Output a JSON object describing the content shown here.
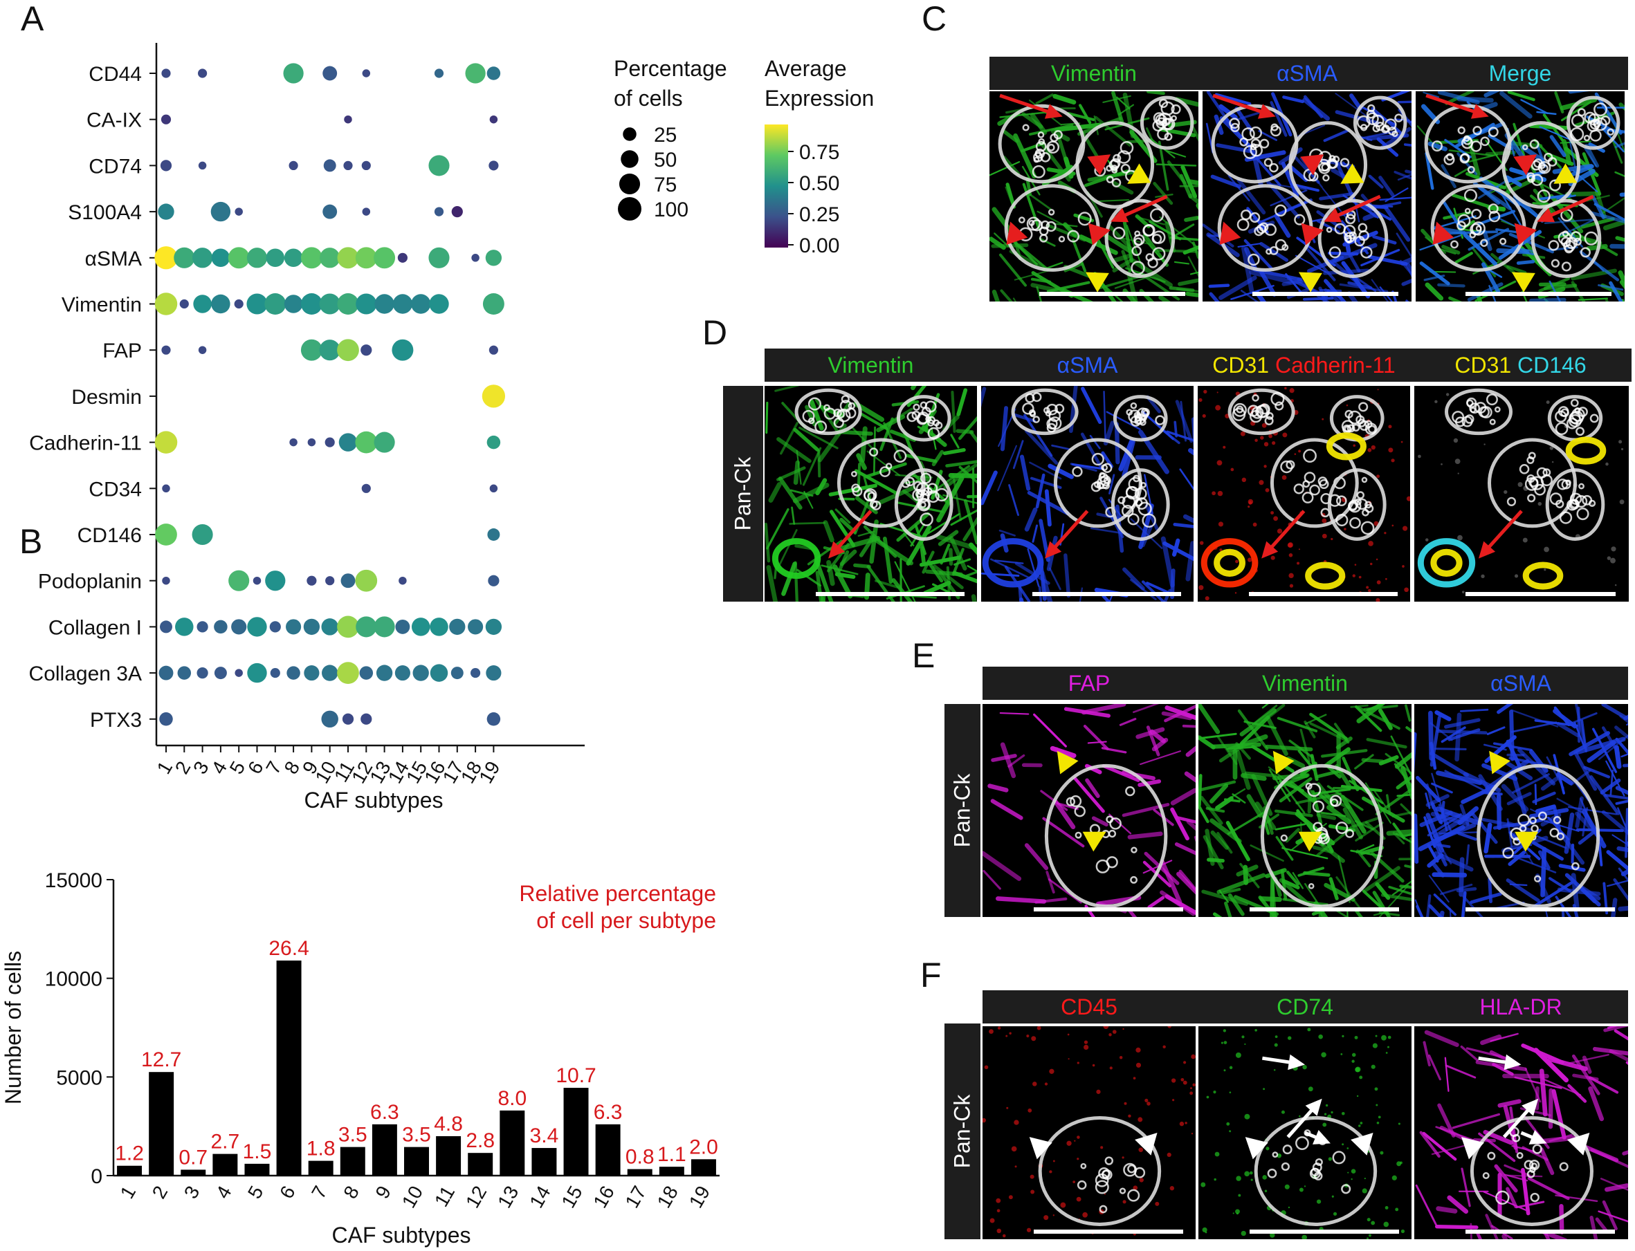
{
  "panel_letters": {
    "a": "A",
    "b": "B",
    "c": "C",
    "d": "D",
    "e": "E",
    "f": "F"
  },
  "chart_data": [
    {
      "type": "scatter",
      "panel": "A",
      "xlabel": "CAF subtypes",
      "x_categories": [
        "1",
        "2",
        "3",
        "4",
        "5",
        "6",
        "7",
        "8",
        "9",
        "10",
        "11",
        "12",
        "13",
        "14",
        "15",
        "16",
        "17",
        "18",
        "19"
      ],
      "y_categories": [
        "CD44",
        "CA-IX",
        "CD74",
        "S100A4",
        "αSMA",
        "Vimentin",
        "FAP",
        "Desmin",
        "Cadherin-11",
        "CD34",
        "CD146",
        "Podoplanin",
        "Collagen I",
        "Collagen 3A",
        "PTX3"
      ],
      "size_legend": {
        "title_line1": "Percentage",
        "title_line2": "of cells",
        "values": [
          25,
          50,
          75,
          100
        ],
        "labels": [
          "25",
          "50",
          "75",
          "100"
        ]
      },
      "color_legend": {
        "title_line1": "Average",
        "title_line2": "Expression",
        "ticks": [
          "0.75",
          "0.50",
          "0.25",
          "0.00"
        ],
        "colormap": "viridis",
        "range": [
          0,
          0.9
        ]
      },
      "points": [
        {
          "gene": "CD44",
          "x": 1,
          "pct": 8,
          "expr": 0.2
        },
        {
          "gene": "CD44",
          "x": 3,
          "pct": 8,
          "expr": 0.2
        },
        {
          "gene": "CD44",
          "x": 8,
          "pct": 70,
          "expr": 0.55
        },
        {
          "gene": "CD44",
          "x": 10,
          "pct": 30,
          "expr": 0.25
        },
        {
          "gene": "CD44",
          "x": 12,
          "pct": 5,
          "expr": 0.2
        },
        {
          "gene": "CD44",
          "x": 16,
          "pct": 8,
          "expr": 0.3
        },
        {
          "gene": "CD44",
          "x": 18,
          "pct": 70,
          "expr": 0.6
        },
        {
          "gene": "CD44",
          "x": 19,
          "pct": 25,
          "expr": 0.35
        },
        {
          "gene": "CA-IX",
          "x": 1,
          "pct": 10,
          "expr": 0.15
        },
        {
          "gene": "CA-IX",
          "x": 11,
          "pct": 5,
          "expr": 0.15
        },
        {
          "gene": "CA-IX",
          "x": 19,
          "pct": 5,
          "expr": 0.15
        },
        {
          "gene": "CD74",
          "x": 1,
          "pct": 15,
          "expr": 0.2
        },
        {
          "gene": "CD74",
          "x": 3,
          "pct": 5,
          "expr": 0.2
        },
        {
          "gene": "CD74",
          "x": 8,
          "pct": 8,
          "expr": 0.2
        },
        {
          "gene": "CD74",
          "x": 10,
          "pct": 20,
          "expr": 0.25
        },
        {
          "gene": "CD74",
          "x": 11,
          "pct": 8,
          "expr": 0.2
        },
        {
          "gene": "CD74",
          "x": 12,
          "pct": 8,
          "expr": 0.2
        },
        {
          "gene": "CD74",
          "x": 16,
          "pct": 75,
          "expr": 0.55
        },
        {
          "gene": "CD74",
          "x": 19,
          "pct": 10,
          "expr": 0.2
        },
        {
          "gene": "S100A4",
          "x": 1,
          "pct": 40,
          "expr": 0.4
        },
        {
          "gene": "S100A4",
          "x": 4,
          "pct": 65,
          "expr": 0.35
        },
        {
          "gene": "S100A4",
          "x": 5,
          "pct": 5,
          "expr": 0.2
        },
        {
          "gene": "S100A4",
          "x": 10,
          "pct": 30,
          "expr": 0.3
        },
        {
          "gene": "S100A4",
          "x": 12,
          "pct": 5,
          "expr": 0.2
        },
        {
          "gene": "S100A4",
          "x": 16,
          "pct": 8,
          "expr": 0.25
        },
        {
          "gene": "S100A4",
          "x": 17,
          "pct": 15,
          "expr": 0.1
        },
        {
          "gene": "αSMA",
          "x": 1,
          "pct": 95,
          "expr": 0.9
        },
        {
          "gene": "αSMA",
          "x": 2,
          "pct": 75,
          "expr": 0.55
        },
        {
          "gene": "αSMA",
          "x": 3,
          "pct": 70,
          "expr": 0.5
        },
        {
          "gene": "αSMA",
          "x": 4,
          "pct": 55,
          "expr": 0.45
        },
        {
          "gene": "αSMA",
          "x": 5,
          "pct": 80,
          "expr": 0.65
        },
        {
          "gene": "αSMA",
          "x": 6,
          "pct": 70,
          "expr": 0.55
        },
        {
          "gene": "αSMA",
          "x": 7,
          "pct": 55,
          "expr": 0.5
        },
        {
          "gene": "αSMA",
          "x": 8,
          "pct": 55,
          "expr": 0.5
        },
        {
          "gene": "αSMA",
          "x": 9,
          "pct": 80,
          "expr": 0.65
        },
        {
          "gene": "αSMA",
          "x": 10,
          "pct": 70,
          "expr": 0.6
        },
        {
          "gene": "αSMA",
          "x": 11,
          "pct": 80,
          "expr": 0.75
        },
        {
          "gene": "αSMA",
          "x": 12,
          "pct": 80,
          "expr": 0.7
        },
        {
          "gene": "αSMA",
          "x": 13,
          "pct": 80,
          "expr": 0.65
        },
        {
          "gene": "αSMA",
          "x": 14,
          "pct": 10,
          "expr": 0.15
        },
        {
          "gene": "αSMA",
          "x": 16,
          "pct": 75,
          "expr": 0.55
        },
        {
          "gene": "αSMA",
          "x": 18,
          "pct": 5,
          "expr": 0.2
        },
        {
          "gene": "αSMA",
          "x": 19,
          "pct": 40,
          "expr": 0.55
        },
        {
          "gene": "Vimentin",
          "x": 1,
          "pct": 90,
          "expr": 0.8
        },
        {
          "gene": "Vimentin",
          "x": 2,
          "pct": 8,
          "expr": 0.2
        },
        {
          "gene": "Vimentin",
          "x": 3,
          "pct": 55,
          "expr": 0.45
        },
        {
          "gene": "Vimentin",
          "x": 4,
          "pct": 60,
          "expr": 0.4
        },
        {
          "gene": "Vimentin",
          "x": 5,
          "pct": 8,
          "expr": 0.2
        },
        {
          "gene": "Vimentin",
          "x": 6,
          "pct": 75,
          "expr": 0.45
        },
        {
          "gene": "Vimentin",
          "x": 7,
          "pct": 80,
          "expr": 0.5
        },
        {
          "gene": "Vimentin",
          "x": 8,
          "pct": 55,
          "expr": 0.4
        },
        {
          "gene": "Vimentin",
          "x": 9,
          "pct": 80,
          "expr": 0.45
        },
        {
          "gene": "Vimentin",
          "x": 10,
          "pct": 75,
          "expr": 0.5
        },
        {
          "gene": "Vimentin",
          "x": 11,
          "pct": 80,
          "expr": 0.55
        },
        {
          "gene": "Vimentin",
          "x": 12,
          "pct": 75,
          "expr": 0.45
        },
        {
          "gene": "Vimentin",
          "x": 13,
          "pct": 65,
          "expr": 0.4
        },
        {
          "gene": "Vimentin",
          "x": 14,
          "pct": 65,
          "expr": 0.4
        },
        {
          "gene": "Vimentin",
          "x": 15,
          "pct": 65,
          "expr": 0.4
        },
        {
          "gene": "Vimentin",
          "x": 16,
          "pct": 65,
          "expr": 0.45
        },
        {
          "gene": "Vimentin",
          "x": 19,
          "pct": 80,
          "expr": 0.55
        },
        {
          "gene": "FAP",
          "x": 1,
          "pct": 8,
          "expr": 0.2
        },
        {
          "gene": "FAP",
          "x": 3,
          "pct": 5,
          "expr": 0.2
        },
        {
          "gene": "FAP",
          "x": 9,
          "pct": 80,
          "expr": 0.55
        },
        {
          "gene": "FAP",
          "x": 10,
          "pct": 75,
          "expr": 0.5
        },
        {
          "gene": "FAP",
          "x": 11,
          "pct": 85,
          "expr": 0.75
        },
        {
          "gene": "FAP",
          "x": 12,
          "pct": 15,
          "expr": 0.2
        },
        {
          "gene": "FAP",
          "x": 14,
          "pct": 80,
          "expr": 0.45
        },
        {
          "gene": "FAP",
          "x": 19,
          "pct": 8,
          "expr": 0.2
        },
        {
          "gene": "Desmin",
          "x": 19,
          "pct": 95,
          "expr": 0.88
        },
        {
          "gene": "Cadherin-11",
          "x": 1,
          "pct": 90,
          "expr": 0.82
        },
        {
          "gene": "Cadherin-11",
          "x": 8,
          "pct": 5,
          "expr": 0.2
        },
        {
          "gene": "Cadherin-11",
          "x": 9,
          "pct": 5,
          "expr": 0.2
        },
        {
          "gene": "Cadherin-11",
          "x": 10,
          "pct": 10,
          "expr": 0.2
        },
        {
          "gene": "Cadherin-11",
          "x": 11,
          "pct": 55,
          "expr": 0.4
        },
        {
          "gene": "Cadherin-11",
          "x": 12,
          "pct": 85,
          "expr": 0.65
        },
        {
          "gene": "Cadherin-11",
          "x": 13,
          "pct": 75,
          "expr": 0.55
        },
        {
          "gene": "Cadherin-11",
          "x": 19,
          "pct": 25,
          "expr": 0.5
        },
        {
          "gene": "CD34",
          "x": 1,
          "pct": 5,
          "expr": 0.2
        },
        {
          "gene": "CD34",
          "x": 12,
          "pct": 8,
          "expr": 0.2
        },
        {
          "gene": "CD34",
          "x": 19,
          "pct": 5,
          "expr": 0.2
        },
        {
          "gene": "CD146",
          "x": 1,
          "pct": 85,
          "expr": 0.68
        },
        {
          "gene": "CD146",
          "x": 3,
          "pct": 75,
          "expr": 0.5
        },
        {
          "gene": "CD146",
          "x": 19,
          "pct": 20,
          "expr": 0.35
        },
        {
          "gene": "Podoplanin",
          "x": 1,
          "pct": 5,
          "expr": 0.2
        },
        {
          "gene": "Podoplanin",
          "x": 5,
          "pct": 75,
          "expr": 0.6
        },
        {
          "gene": "Podoplanin",
          "x": 6,
          "pct": 5,
          "expr": 0.2
        },
        {
          "gene": "Podoplanin",
          "x": 7,
          "pct": 70,
          "expr": 0.45
        },
        {
          "gene": "Podoplanin",
          "x": 9,
          "pct": 10,
          "expr": 0.2
        },
        {
          "gene": "Podoplanin",
          "x": 10,
          "pct": 8,
          "expr": 0.2
        },
        {
          "gene": "Podoplanin",
          "x": 11,
          "pct": 30,
          "expr": 0.3
        },
        {
          "gene": "Podoplanin",
          "x": 12,
          "pct": 85,
          "expr": 0.75
        },
        {
          "gene": "Podoplanin",
          "x": 14,
          "pct": 5,
          "expr": 0.2
        },
        {
          "gene": "Podoplanin",
          "x": 19,
          "pct": 15,
          "expr": 0.25
        },
        {
          "gene": "Collagen I",
          "x": 1,
          "pct": 20,
          "expr": 0.25
        },
        {
          "gene": "Collagen I",
          "x": 2,
          "pct": 55,
          "expr": 0.45
        },
        {
          "gene": "Collagen I",
          "x": 3,
          "pct": 15,
          "expr": 0.25
        },
        {
          "gene": "Collagen I",
          "x": 4,
          "pct": 25,
          "expr": 0.3
        },
        {
          "gene": "Collagen I",
          "x": 5,
          "pct": 35,
          "expr": 0.3
        },
        {
          "gene": "Collagen I",
          "x": 6,
          "pct": 65,
          "expr": 0.45
        },
        {
          "gene": "Collagen I",
          "x": 7,
          "pct": 15,
          "expr": 0.25
        },
        {
          "gene": "Collagen I",
          "x": 8,
          "pct": 35,
          "expr": 0.35
        },
        {
          "gene": "Collagen I",
          "x": 9,
          "pct": 40,
          "expr": 0.35
        },
        {
          "gene": "Collagen I",
          "x": 10,
          "pct": 45,
          "expr": 0.4
        },
        {
          "gene": "Collagen I",
          "x": 11,
          "pct": 85,
          "expr": 0.75
        },
        {
          "gene": "Collagen I",
          "x": 12,
          "pct": 75,
          "expr": 0.55
        },
        {
          "gene": "Collagen I",
          "x": 13,
          "pct": 75,
          "expr": 0.55
        },
        {
          "gene": "Collagen I",
          "x": 14,
          "pct": 30,
          "expr": 0.3
        },
        {
          "gene": "Collagen I",
          "x": 15,
          "pct": 55,
          "expr": 0.45
        },
        {
          "gene": "Collagen I",
          "x": 16,
          "pct": 55,
          "expr": 0.45
        },
        {
          "gene": "Collagen I",
          "x": 17,
          "pct": 40,
          "expr": 0.35
        },
        {
          "gene": "Collagen I",
          "x": 18,
          "pct": 35,
          "expr": 0.35
        },
        {
          "gene": "Collagen I",
          "x": 19,
          "pct": 40,
          "expr": 0.4
        },
        {
          "gene": "Collagen 3A",
          "x": 1,
          "pct": 30,
          "expr": 0.3
        },
        {
          "gene": "Collagen 3A",
          "x": 2,
          "pct": 25,
          "expr": 0.3
        },
        {
          "gene": "Collagen 3A",
          "x": 3,
          "pct": 15,
          "expr": 0.25
        },
        {
          "gene": "Collagen 3A",
          "x": 4,
          "pct": 20,
          "expr": 0.25
        },
        {
          "gene": "Collagen 3A",
          "x": 5,
          "pct": 5,
          "expr": 0.2
        },
        {
          "gene": "Collagen 3A",
          "x": 6,
          "pct": 65,
          "expr": 0.45
        },
        {
          "gene": "Collagen 3A",
          "x": 7,
          "pct": 10,
          "expr": 0.25
        },
        {
          "gene": "Collagen 3A",
          "x": 8,
          "pct": 25,
          "expr": 0.3
        },
        {
          "gene": "Collagen 3A",
          "x": 9,
          "pct": 35,
          "expr": 0.35
        },
        {
          "gene": "Collagen 3A",
          "x": 10,
          "pct": 40,
          "expr": 0.35
        },
        {
          "gene": "Collagen 3A",
          "x": 11,
          "pct": 85,
          "expr": 0.78
        },
        {
          "gene": "Collagen 3A",
          "x": 12,
          "pct": 25,
          "expr": 0.3
        },
        {
          "gene": "Collagen 3A",
          "x": 13,
          "pct": 40,
          "expr": 0.35
        },
        {
          "gene": "Collagen 3A",
          "x": 14,
          "pct": 35,
          "expr": 0.35
        },
        {
          "gene": "Collagen 3A",
          "x": 15,
          "pct": 40,
          "expr": 0.35
        },
        {
          "gene": "Collagen 3A",
          "x": 16,
          "pct": 50,
          "expr": 0.4
        },
        {
          "gene": "Collagen 3A",
          "x": 17,
          "pct": 20,
          "expr": 0.3
        },
        {
          "gene": "Collagen 3A",
          "x": 18,
          "pct": 10,
          "expr": 0.25
        },
        {
          "gene": "Collagen 3A",
          "x": 19,
          "pct": 35,
          "expr": 0.35
        },
        {
          "gene": "PTX3",
          "x": 1,
          "pct": 25,
          "expr": 0.25
        },
        {
          "gene": "PTX3",
          "x": 10,
          "pct": 45,
          "expr": 0.3
        },
        {
          "gene": "PTX3",
          "x": 11,
          "pct": 15,
          "expr": 0.2
        },
        {
          "gene": "PTX3",
          "x": 12,
          "pct": 15,
          "expr": 0.2
        },
        {
          "gene": "PTX3",
          "x": 19,
          "pct": 25,
          "expr": 0.25
        }
      ]
    },
    {
      "type": "bar",
      "panel": "B",
      "categories": [
        "1",
        "2",
        "3",
        "4",
        "5",
        "6",
        "7",
        "8",
        "9",
        "10",
        "11",
        "12",
        "13",
        "14",
        "15",
        "16",
        "17",
        "18",
        "19"
      ],
      "values": [
        500,
        5250,
        300,
        1100,
        600,
        10900,
        750,
        1450,
        2600,
        1450,
        2000,
        1150,
        3300,
        1400,
        4450,
        2600,
        330,
        450,
        830
      ],
      "bar_labels": [
        "1.2",
        "12.7",
        "0.7",
        "2.7",
        "1.5",
        "26.4",
        "1.8",
        "3.5",
        "6.3",
        "3.5",
        "4.8",
        "2.8",
        "8.0",
        "3.4",
        "10.7",
        "6.3",
        "0.8",
        "1.1",
        "2.0"
      ],
      "ylabel": "Number of cells",
      "xlabel": "CAF subtypes",
      "yticks": [
        "0",
        "5000",
        "10000",
        "15000"
      ],
      "ylim": [
        0,
        15000
      ],
      "annotation_line1": "Relative percentage",
      "annotation_line2": "of cell per subtype",
      "bar_color": "#000000",
      "label_color": "#d7191c"
    }
  ],
  "panel_c": {
    "channels": [
      {
        "label": "Vimentin",
        "color": "#2ecc2e"
      },
      {
        "label": "αSMA",
        "color": "#2a5cff"
      },
      {
        "label": "Merge",
        "color": "#33d6e6"
      }
    ]
  },
  "panel_d": {
    "side_label": "Pan-Ck",
    "channels": [
      {
        "label": "Vimentin",
        "color": "#2ecc2e"
      },
      {
        "label": "αSMA",
        "color": "#2a5cff"
      },
      {
        "label_a": "CD31",
        "color_a": "#f2e600",
        "label_b": "Cadherin-11",
        "color_b": "#ff1a1a"
      },
      {
        "label_a": "CD31",
        "color_a": "#f2e600",
        "label_b": "CD146",
        "color_b": "#33d6e6"
      }
    ]
  },
  "panel_e": {
    "side_label": "Pan-Ck",
    "channels": [
      {
        "label": "FAP",
        "color": "#e01ee0"
      },
      {
        "label": "Vimentin",
        "color": "#2ecc2e"
      },
      {
        "label": "αSMA",
        "color": "#2a5cff"
      }
    ]
  },
  "panel_f": {
    "side_label": "Pan-Ck",
    "channels": [
      {
        "label": "CD45",
        "color": "#ff1a1a"
      },
      {
        "label": "CD74",
        "color": "#2ecc2e"
      },
      {
        "label": "HLA-DR",
        "color": "#e01ee0"
      }
    ]
  }
}
